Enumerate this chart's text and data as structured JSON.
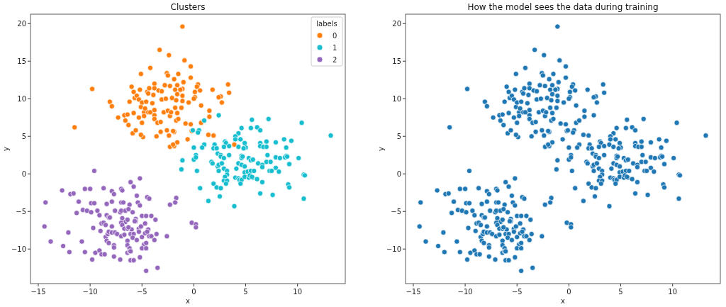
{
  "chart_data": [
    {
      "type": "scatter",
      "title": "Clusters",
      "xlabel": "x",
      "ylabel": "y",
      "legend_title": "labels",
      "legend": "top right",
      "marker": "circle",
      "grid": false,
      "xlim": [
        -15.75,
        14.6
      ],
      "ylim": [
        -14.6,
        21.25
      ],
      "xticks": [
        -15,
        -10,
        -5,
        0,
        5,
        10
      ],
      "yticks": [
        -10,
        -5,
        0,
        5,
        10,
        15,
        20
      ],
      "series": [
        {
          "name": "0",
          "color": "#ff7f0e",
          "x": [
            -11.5,
            -9.8,
            -8.1,
            -7.9,
            -7.3,
            -6.7,
            -6.6,
            -6.4,
            -6.3,
            -6.2,
            -6.0,
            -5.9,
            -5.8,
            -5.8,
            -5.7,
            -5.6,
            -5.5,
            -5.3,
            -5.3,
            -5.2,
            -5.1,
            -5.1,
            -5.0,
            -5.0,
            -4.9,
            -5.1,
            -4.8,
            -4.8,
            -4.7,
            -4.6,
            -4.5,
            -4.4,
            -4.4,
            -4.3,
            -4.2,
            -4.2,
            -4.0,
            -3.9,
            -3.8,
            -3.8,
            -3.8,
            -3.8,
            -3.8,
            -3.6,
            -3.5,
            -3.4,
            -3.3,
            -3.2,
            -3.2,
            -3.1,
            -3.1,
            -2.9,
            -2.8,
            -2.7,
            -2.6,
            -2.6,
            -2.5,
            -2.5,
            -2.4,
            -2.4,
            -2.3,
            -2.3,
            -2.3,
            -2.2,
            -2.1,
            -1.9,
            -1.9,
            -1.9,
            -1.8,
            -1.8,
            -1.7,
            -1.1,
            -0.9,
            -0.3,
            -1.5,
            -0.3,
            -1.0,
            0.4,
            0.3,
            0.6,
            -1.6,
            -1.1,
            -1.3,
            1.8,
            3.3,
            3.4,
            0.1,
            -1.6,
            -1.1,
            2.6,
            2.4,
            2.7,
            0.1,
            0.0,
            -1.7,
            -1.1,
            -0.5,
            0.7,
            -1.2,
            1.5,
            1.5,
            -1.6,
            -1.5,
            -0.8,
            -0.3,
            0.7,
            -2.0,
            -0.2,
            1.4,
            1.9,
            -0.6,
            -1.6,
            -2.0,
            3.9
          ],
          "values": [
            6.2,
            11.3,
            9.6,
            9.0,
            7.5,
            7.8,
            7.1,
            7.9,
            6.5,
            9.6,
            11.6,
            5.4,
            8.1,
            10.9,
            10.1,
            5.8,
            10.4,
            9.9,
            7.5,
            11.2,
            13.3,
            8.9,
            9.5,
            6.8,
            4.9,
            5.2,
            8.2,
            7.7,
            8.7,
            9.6,
            10.9,
            8.2,
            10.7,
            11.4,
            14.1,
            8.2,
            9.4,
            10.5,
            8.5,
            7.8,
            7.3,
            12.0,
            11.4,
            5.0,
            6.8,
            11.1,
            16.5,
            5.6,
            6.9,
            11.0,
            9.9,
            8.2,
            11.8,
            10.0,
            13.4,
            5.8,
            8.4,
            13.1,
            15.8,
            5.1,
            11.7,
            3.6,
            7.7,
            8.2,
            10.1,
            12.6,
            5.6,
            3.7,
            11.2,
            8.8,
            7.1,
            19.6,
            15.1,
            14.3,
            13.3,
            12.8,
            12.2,
            11.9,
            11.6,
            11.1,
            11.8,
            11.3,
            11.2,
            11.2,
            11.9,
            10.8,
            10.9,
            10.6,
            10.4,
            10.3,
            10.2,
            9.5,
            10.2,
            10.0,
            9.8,
            9.7,
            9.5,
            9.1,
            8.8,
            8.4,
            7.6,
            8.1,
            7.3,
            6.7,
            6.6,
            6.8,
            5.7,
            5.7,
            5.2,
            5.1,
            4.6,
            4.2,
            3.9,
            3.9
          ]
        },
        {
          "name": "1",
          "color": "#17becf",
          "x": [
            2.4,
            1.0,
            5.6,
            7.2,
            10.4,
            13.2,
            4.6,
            5.5,
            6.1,
            6.4,
            0.5,
            0.4,
            -0.1,
            4.3,
            4.0,
            4.5,
            4.0,
            8.7,
            9.4,
            3.0,
            3.1,
            4.9,
            6.4,
            7.0,
            7.9,
            2.0,
            1.0,
            0.8,
            0.0,
            1.9,
            2.2,
            2.9,
            3.4,
            4.3,
            5.0,
            4.8,
            6.4,
            6.7,
            7.0,
            8.9,
            0.2,
            2.3,
            2.6,
            3.4,
            4.6,
            7.1,
            8.9,
            -1.1,
            -1.2,
            0.0,
            0.2,
            0.3,
            1.7,
            1.8,
            2.3,
            2.4,
            2.4,
            2.6,
            2.9,
            2.7,
            2.9,
            3.2,
            3.2,
            3.0,
            2.9,
            3.2,
            3.1,
            1.9,
            2.2,
            2.6,
            2.5,
            1.4,
            0.6,
            3.9,
            4.1,
            4.0,
            4.3,
            4.6,
            4.9,
            4.6,
            4.7,
            4.3,
            4.4,
            4.6,
            4.5,
            4.9,
            4.9,
            5.2,
            5.3,
            5.3,
            5.5,
            5.7,
            5.5,
            5.8,
            5.4,
            5.7,
            5.6,
            6.1,
            6.2,
            6.6,
            6.6,
            6.6,
            6.4,
            7.0,
            7.4,
            7.3,
            7.5,
            7.9,
            8.2,
            7.6,
            7.9,
            8.3,
            8.8,
            9.0,
            9.2,
            10.1,
            9.1,
            9.2,
            10.6,
            10.7,
            10.6
          ],
          "values": [
            7.8,
            7.1,
            7.2,
            7.3,
            6.8,
            5.1,
            6.1,
            6.1,
            6.2,
            5.8,
            5.8,
            5.5,
            5.8,
            5.4,
            5.0,
            4.6,
            4.6,
            4.6,
            4.4,
            4.3,
            4.1,
            4.1,
            4.1,
            4.3,
            4.2,
            3.9,
            3.9,
            3.5,
            3.5,
            3.4,
            3.4,
            3.6,
            3.7,
            3.6,
            3.5,
            3.4,
            3.7,
            3.6,
            3.6,
            3.5,
            2.5,
            2.7,
            2.5,
            2.5,
            2.4,
            2.5,
            2.4,
            1.8,
            0.6,
            1.9,
            2.2,
            0.4,
            1.6,
            1.4,
            1.0,
            1.2,
            0.4,
            2.3,
            2.1,
            1.4,
            0.7,
            0.4,
            -0.1,
            -0.4,
            -0.9,
            -0.9,
            -1.3,
            -1.3,
            -1.8,
            -1.9,
            -3.0,
            -3.6,
            -1.9,
            -4.3,
            0.7,
            -0.5,
            1.4,
            1.2,
            1.0,
            2.1,
            2.3,
            -0.6,
            -0.8,
            -0.8,
            -1.3,
            0.2,
            -0.4,
            0.3,
            -0.5,
            2.1,
            1.8,
            1.9,
            0.4,
            0.4,
            -0.2,
            -0.5,
            -0.4,
            -0.7,
            1.4,
            1.2,
            0.9,
            -1.1,
            -2.6,
            1.6,
            1.6,
            0.4,
            0.4,
            0.8,
            0.3,
            -2.8,
            2.2,
            2.1,
            2.2,
            2.3,
            1.3,
            2.1,
            -1.4,
            -1.8,
            -0.1,
            -0.2,
            -3.3
          ]
        },
        {
          "name": "2",
          "color": "#9467bd",
          "x": [
            -1.7,
            -1.8,
            -2.3,
            -0.2,
            0.2,
            0.2,
            -2.6,
            -9.6,
            -6.1,
            -5.2,
            -5.8,
            -12.7,
            -11.9,
            -11.6,
            -10.5,
            -10.0,
            -8.7,
            -7.9,
            -7.7,
            -7.0,
            -6.9,
            -5.5,
            -4.5,
            -4.3,
            -14.3,
            -11.1,
            -9.9,
            -9.6,
            -8.4,
            -7.9,
            -7.0,
            -6.8,
            -6.2,
            -5.4,
            -5.2,
            -10.7,
            -10.3,
            -11.3,
            -9.9,
            -9.3,
            -7.6,
            -7.1,
            -7.0,
            -6.6,
            -6.3,
            -5.9,
            -9.1,
            -8.4,
            -8.2,
            -8.1,
            -6.9,
            -6.6,
            -6.4,
            -5.6,
            -5.6,
            -5.7,
            -5.0,
            -4.6,
            -4.1,
            -3.7,
            -9.7,
            -8.9,
            -8.7,
            -8.5,
            -7.9,
            -7.0,
            -6.9,
            -6.7,
            -6.4,
            -6.0,
            -6.3,
            -5.3,
            -5.3,
            -5.1,
            -4.7,
            -4.4,
            -14.4,
            -12.1,
            -13.8,
            -9.0,
            -8.5,
            -8.3,
            -8.2,
            -7.9,
            -7.6,
            -7.4,
            -7.0,
            -6.7,
            -6.1,
            -5.8,
            -5.9,
            -5.5,
            -5.0,
            -4.7,
            -4.5,
            -4.3,
            -4.1,
            -3.6,
            -3.8,
            -10.8,
            -8.4,
            -8.2,
            -6.4,
            -7.7,
            -7.7,
            -6.4,
            -4.8,
            -4.6,
            -5.0,
            -4.6,
            -6.2,
            -12.6,
            -12.0,
            -10.5,
            -9.5,
            -9.1,
            -8.9,
            -8.6,
            -7.7,
            -7.1,
            -9.8,
            -6.4,
            -6.2,
            -6.1,
            -6.1,
            -5.8,
            -5.2,
            -4.6,
            -3.5
          ],
          "values": [
            -3.2,
            -3.8,
            -4.1,
            -6.5,
            -6.7,
            -7.1,
            -8.3,
            0.4,
            -1.1,
            -0.6,
            -1.7,
            -2.2,
            -2.7,
            -2.6,
            -2.0,
            -2.0,
            -1.9,
            -2.3,
            -2.7,
            -2.0,
            -2.2,
            -2.9,
            -3.1,
            -3.3,
            -3.8,
            -3.7,
            -3.9,
            -3.9,
            -4.0,
            -3.7,
            -3.8,
            -3.8,
            -4.1,
            -3.8,
            -4.2,
            -4.8,
            -4.9,
            -5.2,
            -5.1,
            -4.9,
            -4.9,
            -5.1,
            -4.9,
            -4.9,
            -4.7,
            -5.1,
            -5.5,
            -5.5,
            -5.8,
            -5.8,
            -5.9,
            -6.4,
            -6.1,
            -6.0,
            -6.3,
            -6.3,
            -5.6,
            -5.6,
            -5.6,
            -6.1,
            -7.2,
            -6.6,
            -6.5,
            -6.8,
            -7.0,
            -6.5,
            -6.8,
            -7.3,
            -7.3,
            -7.4,
            -7.1,
            -7.3,
            -7.7,
            -7.0,
            -6.6,
            -7.4,
            -7.0,
            -7.8,
            -9.0,
            -7.6,
            -8.4,
            -8.0,
            -7.7,
            -7.8,
            -7.8,
            -8.0,
            -8.3,
            -8.1,
            -8.0,
            -8.0,
            -8.5,
            -8.8,
            -8.4,
            -7.9,
            -7.7,
            -8.3,
            -8.3,
            -8.0,
            -8.8,
            -9.0,
            -8.9,
            -9.2,
            -8.9,
            -9.5,
            -9.8,
            -9.5,
            -9.4,
            -9.2,
            -9.9,
            -9.9,
            -9.9,
            -9.6,
            -10.4,
            -10.4,
            -10.5,
            -10.2,
            -10.7,
            -10.7,
            -11.0,
            -11.4,
            -11.4,
            -10.5,
            -10.3,
            -10.3,
            -11.5,
            -11.5,
            -11.1,
            -12.9,
            -12.5
          ]
        }
      ]
    },
    {
      "type": "scatter",
      "title": "How the model sees the data during training",
      "xlabel": "x",
      "ylabel": "y",
      "marker": "circle",
      "grid": false,
      "xlim": [
        -15.75,
        14.6
      ],
      "ylim": [
        -14.6,
        21.25
      ],
      "xticks": [
        -15,
        -10,
        -5,
        0,
        5,
        10
      ],
      "yticks": [
        -10,
        -5,
        0,
        5,
        10,
        15,
        20
      ],
      "series": [
        {
          "color": "#1f77b4",
          "x": [
            -11.5,
            -9.8,
            -8.1,
            -7.9,
            -7.3,
            -6.7,
            -6.6,
            -6.4,
            -6.3,
            -6.2,
            -6.0,
            -5.9,
            -5.8,
            -5.8,
            -5.7,
            -5.6,
            -5.5,
            -5.3,
            -5.3,
            -5.2,
            -5.1,
            -5.1,
            -5.0,
            -5.0,
            -4.9,
            -5.1,
            -4.8,
            -4.8,
            -4.7,
            -4.6,
            -4.5,
            -4.4,
            -4.4,
            -4.3,
            -4.2,
            -4.2,
            -4.0,
            -3.9,
            -3.8,
            -3.8,
            -3.8,
            -3.8,
            -3.8,
            -3.6,
            -3.5,
            -3.4,
            -3.3,
            -3.2,
            -3.2,
            -3.1,
            -3.1,
            -2.9,
            -2.8,
            -2.7,
            -2.6,
            -2.6,
            -2.5,
            -2.5,
            -2.4,
            -2.4,
            -2.3,
            -2.3,
            -2.3,
            -2.2,
            -2.1,
            -1.9,
            -1.9,
            -1.9,
            -1.8,
            -1.8,
            -1.7,
            -1.1,
            -0.9,
            -0.3,
            -1.5,
            -0.3,
            -1.0,
            0.4,
            0.3,
            0.6,
            -1.6,
            -1.1,
            -1.3,
            1.8,
            3.3,
            3.4,
            0.1,
            -1.6,
            -1.1,
            2.6,
            2.4,
            2.7,
            0.1,
            0.0,
            -1.7,
            -1.1,
            -0.5,
            0.7,
            -1.2,
            1.5,
            1.5,
            -1.6,
            -1.5,
            -0.8,
            -0.3,
            0.7,
            -2.0,
            -0.2,
            1.4,
            1.9,
            -0.6,
            -1.6,
            -2.0,
            3.9,
            2.4,
            1.0,
            5.6,
            7.2,
            10.4,
            13.2,
            4.6,
            5.5,
            6.1,
            6.4,
            0.5,
            0.4,
            -0.1,
            4.3,
            4.0,
            4.5,
            4.0,
            8.7,
            9.4,
            3.0,
            3.1,
            4.9,
            6.4,
            7.0,
            7.9,
            2.0,
            1.0,
            0.8,
            0.0,
            1.9,
            2.2,
            2.9,
            3.4,
            4.3,
            5.0,
            4.8,
            6.4,
            6.7,
            7.0,
            8.9,
            0.2,
            2.3,
            2.6,
            3.4,
            4.6,
            7.1,
            8.9,
            -1.1,
            -1.2,
            0.0,
            0.2,
            0.3,
            1.7,
            1.8,
            2.3,
            2.4,
            2.4,
            2.6,
            2.9,
            2.7,
            2.9,
            3.2,
            3.2,
            3.0,
            2.9,
            3.2,
            3.1,
            1.9,
            2.2,
            2.6,
            2.5,
            1.4,
            0.6,
            3.9,
            4.1,
            4.0,
            4.3,
            4.6,
            4.9,
            4.6,
            4.7,
            4.3,
            4.4,
            4.6,
            4.5,
            4.9,
            4.9,
            5.2,
            5.3,
            5.3,
            5.5,
            5.7,
            5.5,
            5.8,
            5.4,
            5.7,
            5.6,
            6.1,
            6.2,
            6.6,
            6.6,
            6.6,
            6.4,
            7.0,
            7.4,
            7.3,
            7.5,
            7.9,
            8.2,
            7.6,
            7.9,
            8.3,
            8.8,
            9.0,
            9.2,
            10.1,
            9.1,
            9.2,
            10.6,
            10.7,
            10.6,
            -1.7,
            -1.8,
            -2.3,
            -0.2,
            0.2,
            0.2,
            -2.6,
            -9.6,
            -6.1,
            -5.2,
            -5.8,
            -12.7,
            -11.9,
            -11.6,
            -10.5,
            -10.0,
            -8.7,
            -7.9,
            -7.7,
            -7.0,
            -6.9,
            -5.5,
            -4.5,
            -4.3,
            -14.3,
            -11.1,
            -9.9,
            -9.6,
            -8.4,
            -7.9,
            -7.0,
            -6.8,
            -6.2,
            -5.4,
            -5.2,
            -10.7,
            -10.3,
            -11.3,
            -9.9,
            -9.3,
            -7.6,
            -7.1,
            -7.0,
            -6.6,
            -6.3,
            -5.9,
            -9.1,
            -8.4,
            -8.2,
            -8.1,
            -6.9,
            -6.6,
            -6.4,
            -5.6,
            -5.6,
            -5.7,
            -5.0,
            -4.6,
            -4.1,
            -3.7,
            -9.7,
            -8.9,
            -8.7,
            -8.5,
            -7.9,
            -7.0,
            -6.9,
            -6.7,
            -6.4,
            -6.0,
            -6.3,
            -5.3,
            -5.3,
            -5.1,
            -4.7,
            -4.4,
            -14.4,
            -12.1,
            -13.8,
            -9.0,
            -8.5,
            -8.3,
            -8.2,
            -7.9,
            -7.6,
            -7.4,
            -7.0,
            -6.7,
            -6.1,
            -5.8,
            -5.9,
            -5.5,
            -5.0,
            -4.7,
            -4.5,
            -4.3,
            -4.1,
            -3.6,
            -3.8,
            -10.8,
            -8.4,
            -8.2,
            -6.4,
            -7.7,
            -7.7,
            -6.4,
            -4.8,
            -4.6,
            -5.0,
            -4.6,
            -6.2,
            -12.6,
            -12.0,
            -10.5,
            -9.5,
            -9.1,
            -8.9,
            -8.6,
            -7.7,
            -7.1,
            -9.8,
            -6.4,
            -6.2,
            -6.1,
            -6.1,
            -5.8,
            -5.2,
            -4.6,
            -3.5
          ],
          "values": [
            6.2,
            11.3,
            9.6,
            9.0,
            7.5,
            7.8,
            7.1,
            7.9,
            6.5,
            9.6,
            11.6,
            5.4,
            8.1,
            10.9,
            10.1,
            5.8,
            10.4,
            9.9,
            7.5,
            11.2,
            13.3,
            8.9,
            9.5,
            6.8,
            4.9,
            5.2,
            8.2,
            7.7,
            8.7,
            9.6,
            10.9,
            8.2,
            10.7,
            11.4,
            14.1,
            8.2,
            9.4,
            10.5,
            8.5,
            7.8,
            7.3,
            12.0,
            11.4,
            5.0,
            6.8,
            11.1,
            16.5,
            5.6,
            6.9,
            11.0,
            9.9,
            8.2,
            11.8,
            10.0,
            13.4,
            5.8,
            8.4,
            13.1,
            15.8,
            5.1,
            11.7,
            3.6,
            7.7,
            8.2,
            10.1,
            12.6,
            5.6,
            3.7,
            11.2,
            8.8,
            7.1,
            19.6,
            15.1,
            14.3,
            13.3,
            12.8,
            12.2,
            11.9,
            11.6,
            11.1,
            11.8,
            11.3,
            11.2,
            11.2,
            11.9,
            10.8,
            10.9,
            10.6,
            10.4,
            10.3,
            10.2,
            9.5,
            10.2,
            10.0,
            9.8,
            9.7,
            9.5,
            9.1,
            8.8,
            8.4,
            7.6,
            8.1,
            7.3,
            6.7,
            6.6,
            6.8,
            5.7,
            5.7,
            5.2,
            5.1,
            4.6,
            4.2,
            3.9,
            3.9,
            7.8,
            7.1,
            7.2,
            7.3,
            6.8,
            5.1,
            6.1,
            6.1,
            6.2,
            5.8,
            5.8,
            5.5,
            5.8,
            5.4,
            5.0,
            4.6,
            4.6,
            4.6,
            4.4,
            4.3,
            4.1,
            4.1,
            4.1,
            4.3,
            4.2,
            3.9,
            3.9,
            3.5,
            3.5,
            3.4,
            3.4,
            3.6,
            3.7,
            3.6,
            3.5,
            3.4,
            3.7,
            3.6,
            3.6,
            3.5,
            2.5,
            2.7,
            2.5,
            2.5,
            2.4,
            2.5,
            2.4,
            1.8,
            0.6,
            1.9,
            2.2,
            0.4,
            1.6,
            1.4,
            1.0,
            1.2,
            0.4,
            2.3,
            2.1,
            1.4,
            0.7,
            0.4,
            -0.1,
            -0.4,
            -0.9,
            -0.9,
            -1.3,
            -1.3,
            -1.8,
            -1.9,
            -3.0,
            -3.6,
            -1.9,
            -4.3,
            0.7,
            -0.5,
            1.4,
            1.2,
            1.0,
            2.1,
            2.3,
            -0.6,
            -0.8,
            -0.8,
            -1.3,
            0.2,
            -0.4,
            0.3,
            -0.5,
            2.1,
            1.8,
            1.9,
            0.4,
            0.4,
            -0.2,
            -0.5,
            -0.4,
            -0.7,
            1.4,
            1.2,
            0.9,
            -1.1,
            -2.6,
            1.6,
            1.6,
            0.4,
            0.4,
            0.8,
            0.3,
            -2.8,
            2.2,
            2.1,
            2.2,
            2.3,
            1.3,
            2.1,
            -1.4,
            -1.8,
            -0.1,
            -0.2,
            -3.3,
            -3.2,
            -3.8,
            -4.1,
            -6.5,
            -6.7,
            -7.1,
            -8.3,
            0.4,
            -1.1,
            -0.6,
            -1.7,
            -2.2,
            -2.7,
            -2.6,
            -2.0,
            -2.0,
            -1.9,
            -2.3,
            -2.7,
            -2.0,
            -2.2,
            -2.9,
            -3.1,
            -3.3,
            -3.8,
            -3.7,
            -3.9,
            -3.9,
            -4.0,
            -3.7,
            -3.8,
            -3.8,
            -4.1,
            -3.8,
            -4.2,
            -4.8,
            -4.9,
            -5.2,
            -5.1,
            -4.9,
            -4.9,
            -5.1,
            -4.9,
            -4.9,
            -4.7,
            -5.1,
            -5.5,
            -5.5,
            -5.8,
            -5.8,
            -5.9,
            -6.4,
            -6.1,
            -6.0,
            -6.3,
            -6.3,
            -5.6,
            -5.6,
            -5.6,
            -6.1,
            -7.2,
            -6.6,
            -6.5,
            -6.8,
            -7.0,
            -6.5,
            -6.8,
            -7.3,
            -7.3,
            -7.4,
            -7.1,
            -7.3,
            -7.7,
            -7.0,
            -6.6,
            -7.4,
            -7.0,
            -7.8,
            -9.0,
            -7.6,
            -8.4,
            -8.0,
            -7.7,
            -7.8,
            -7.8,
            -8.0,
            -8.3,
            -8.1,
            -8.0,
            -8.0,
            -8.5,
            -8.8,
            -8.4,
            -7.9,
            -7.7,
            -8.3,
            -8.3,
            -8.0,
            -8.8,
            -9.0,
            -8.9,
            -9.2,
            -8.9,
            -9.5,
            -9.8,
            -9.5,
            -9.4,
            -9.2,
            -9.9,
            -9.9,
            -9.9,
            -9.6,
            -10.4,
            -10.4,
            -10.5,
            -10.2,
            -10.7,
            -10.7,
            -11.0,
            -11.4,
            -11.4,
            -10.5,
            -10.3,
            -10.3,
            -11.5,
            -11.5,
            -11.1,
            -12.9,
            -12.5
          ]
        }
      ]
    }
  ]
}
